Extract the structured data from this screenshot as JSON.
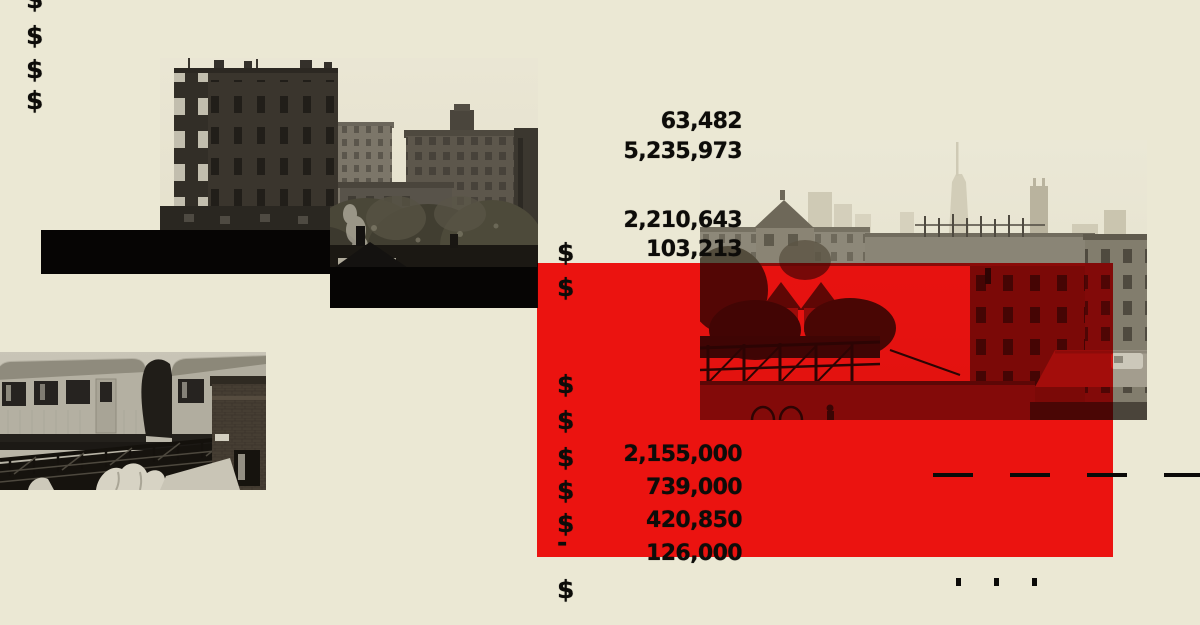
{
  "colors": {
    "background": "#ebe8d4",
    "accent_red": "#ee1212",
    "ink": "#0d0c09"
  },
  "margin_dollars": [
    "$",
    "$",
    "$",
    "$"
  ],
  "ledger": {
    "rows_top": [
      "63,482",
      "5,235,973",
      "2,210,643",
      "103,213"
    ],
    "row4_dollar": "$",
    "floating_dollars": [
      "$",
      "$",
      "$"
    ],
    "rows_bottom": [
      {
        "symbol": "$",
        "amount": "2,155,000"
      },
      {
        "symbol": "$",
        "amount": "739,000"
      },
      {
        "symbol": "$",
        "amount": "420,850"
      },
      {
        "symbol": "-",
        "amount": "126,000"
      }
    ],
    "trailing_dollar": "$"
  },
  "marks": {
    "dash_line_segments": 4,
    "dot_line_dots": 3
  },
  "scene": {
    "left_photo": "bw-cityscape-brick-tower-trees",
    "right_photo": "hazy-manhattan-skyline-over-rooftops",
    "train_photo": "elevated-subway-train",
    "redaction_bars": 2,
    "red_overlay": "red-tint-rectangle"
  }
}
